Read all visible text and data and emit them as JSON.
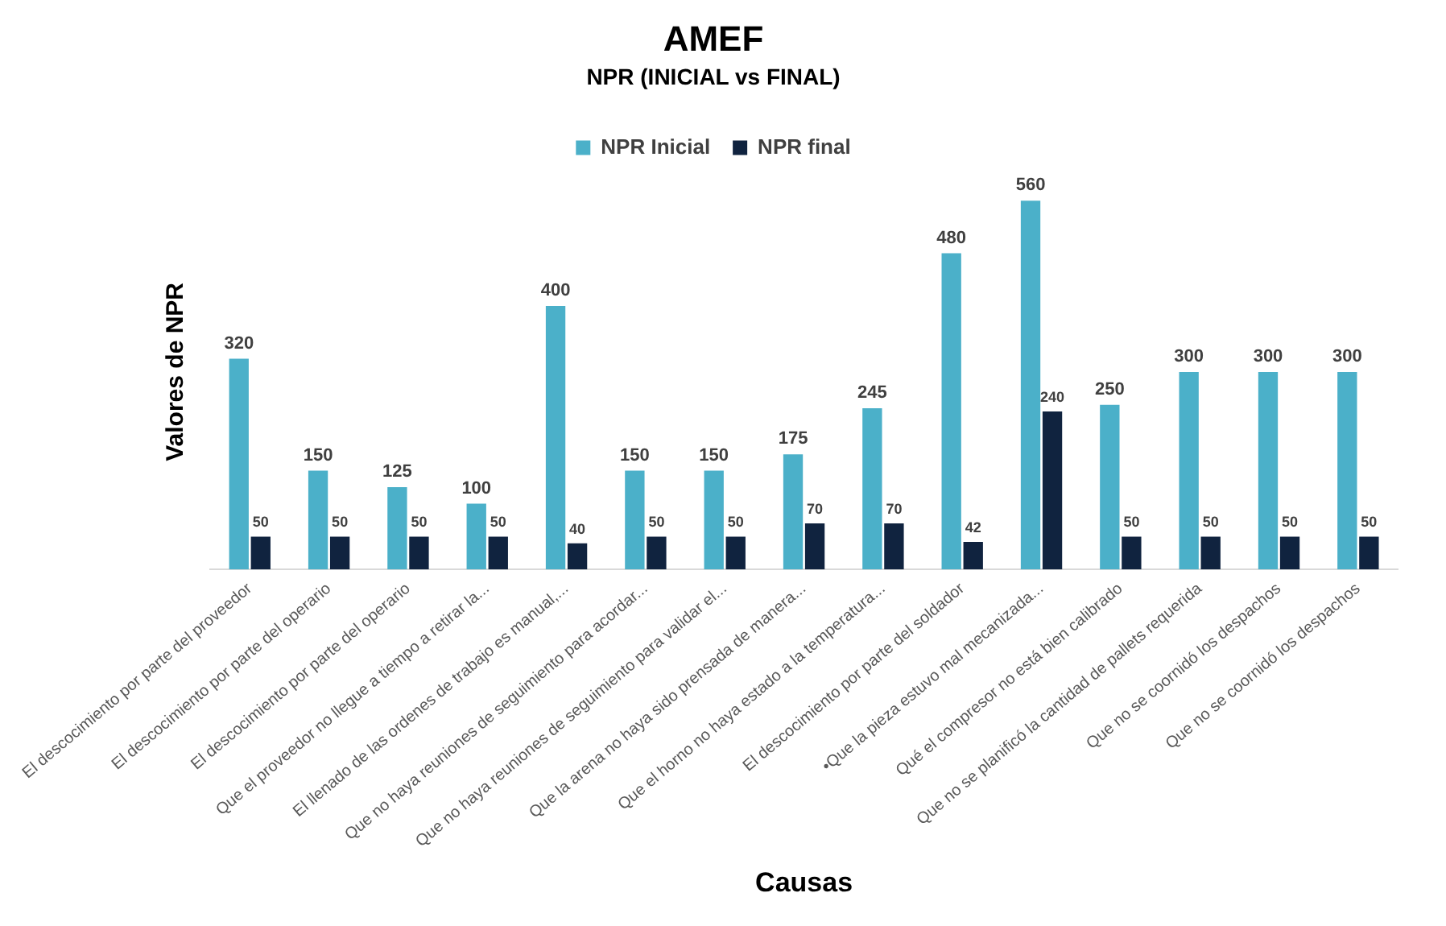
{
  "chart_data": {
    "type": "bar",
    "title": "AMEF",
    "subtitle": "NPR (INICIAL vs FINAL)",
    "xlabel": "Causas",
    "ylabel": "Valores de NPR",
    "categories": [
      "El descocimiento por parte del proveedor",
      "El descocimiento por parte del operario",
      "El descocimiento por parte del operario",
      "Que el proveedor no llegue a tiempo a retirar la...",
      "El llenado de las ordenes de trabajo es manual,...",
      "Que no haya reuniones de seguimiento para acordar...",
      "Que no haya reuniones de seguimiento para validar el...",
      "Que la arena no haya sido prensada de manera...",
      "Que el horno no haya estado a la temperatura...",
      "El descocimiento por parte del soldador",
      "•Que la pieza estuvo mal mecanizada...",
      "Qué el compresor no está bien calibrado",
      "Que no se planificó la cantidad de pallets requerida",
      "Que no se coornidó los despachos",
      "Que no se coornidó los despachos"
    ],
    "series": [
      {
        "name": "NPR Inicial",
        "color": "#4bb0c9",
        "values": [
          320,
          150,
          125,
          100,
          400,
          150,
          150,
          175,
          245,
          480,
          560,
          250,
          300,
          300,
          300
        ]
      },
      {
        "name": "NPR final",
        "color": "#10233f",
        "values": [
          50,
          50,
          50,
          50,
          40,
          50,
          50,
          70,
          70,
          42,
          240,
          50,
          50,
          50,
          50
        ]
      }
    ],
    "data_labels": true,
    "grid": false,
    "legend": "top"
  }
}
